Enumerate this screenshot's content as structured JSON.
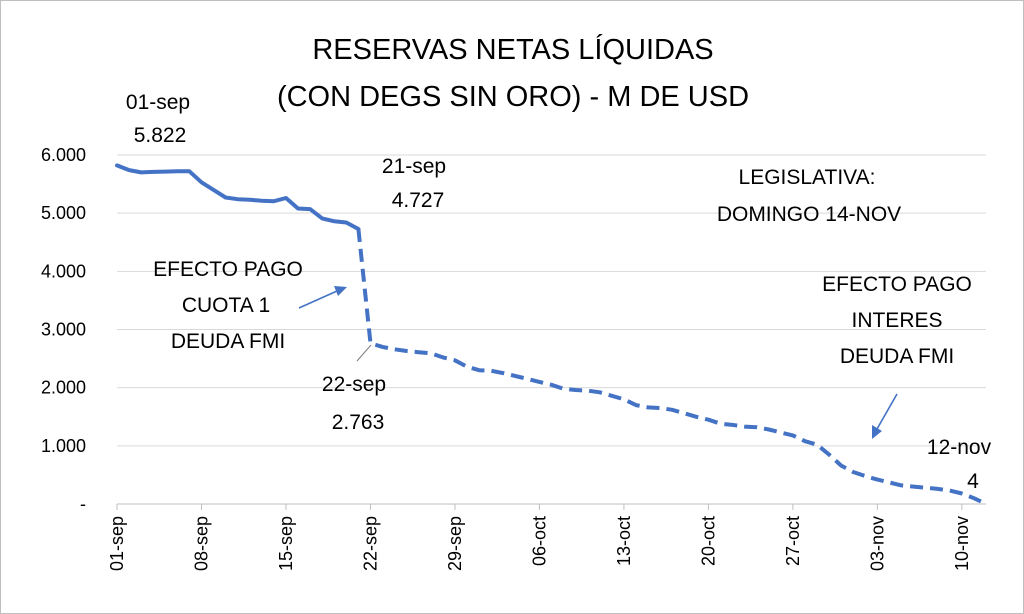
{
  "chart_data": {
    "type": "line",
    "title": [
      "RESERVAS NETAS LÍQUIDAS",
      "(CON DEGS SIN ORO) - M DE USD"
    ],
    "xlabel": "",
    "ylabel": "",
    "ylim": [
      0,
      6000
    ],
    "yticks": [
      "-",
      "1.000",
      "2.000",
      "3.000",
      "4.000",
      "5.000",
      "6.000"
    ],
    "ytick_values": [
      0,
      1000,
      2000,
      3000,
      4000,
      5000,
      6000
    ],
    "xticks": [
      "01-sep",
      "08-sep",
      "15-sep",
      "22-sep",
      "29-sep",
      "06-oct",
      "13-oct",
      "20-oct",
      "27-oct",
      "03-nov",
      "10-nov"
    ],
    "xtick_days": [
      1,
      8,
      15,
      22,
      29,
      36,
      43,
      50,
      57,
      64,
      71
    ],
    "xlim_days": [
      1,
      73
    ],
    "grid": true,
    "series": [
      {
        "style": "solid",
        "color": "#4472C4",
        "x_days": [
          1,
          2,
          3,
          4,
          5,
          6,
          7,
          8,
          9,
          10,
          11,
          12,
          13,
          14,
          15,
          16,
          17,
          18,
          19,
          20,
          21
        ],
        "values": [
          5822,
          5740,
          5700,
          5710,
          5715,
          5720,
          5720,
          5530,
          5400,
          5270,
          5240,
          5230,
          5215,
          5205,
          5260,
          5080,
          5070,
          4910,
          4860,
          4840,
          4727
        ]
      },
      {
        "style": "dashed",
        "color": "#4472C4",
        "x_days": [
          21,
          22,
          23,
          24,
          25,
          26,
          27,
          28,
          29,
          30,
          31,
          32,
          33,
          34,
          35,
          36,
          37,
          38,
          39,
          40,
          41,
          42,
          43,
          44,
          45,
          46,
          47,
          48,
          49,
          50,
          51,
          52,
          53,
          54,
          55,
          56,
          57,
          58,
          59,
          60,
          61,
          62,
          63,
          64,
          65,
          66,
          67,
          68,
          69,
          70,
          71,
          72,
          73
        ],
        "values": [
          4727,
          2763,
          2700,
          2660,
          2630,
          2610,
          2590,
          2520,
          2470,
          2360,
          2300,
          2290,
          2250,
          2200,
          2150,
          2100,
          2050,
          1980,
          1960,
          1950,
          1920,
          1860,
          1800,
          1700,
          1660,
          1650,
          1620,
          1560,
          1500,
          1450,
          1380,
          1360,
          1330,
          1320,
          1280,
          1230,
          1180,
          1080,
          1020,
          850,
          660,
          550,
          480,
          420,
          370,
          320,
          300,
          280,
          260,
          230,
          180,
          100,
          4
        ]
      }
    ],
    "annotations": [
      {
        "name": "start",
        "lines": [
          "01-sep",
          "5.822"
        ]
      },
      {
        "name": "before-drop",
        "lines": [
          "21-sep",
          "4.727"
        ]
      },
      {
        "name": "after-drop",
        "lines": [
          "22-sep",
          "2.763"
        ]
      },
      {
        "name": "end",
        "lines": [
          "12-nov",
          "4"
        ]
      },
      {
        "name": "legislativa",
        "lines": [
          "LEGISLATIVA:",
          "DOMINGO 14-NOV"
        ]
      },
      {
        "name": "efecto-cuota",
        "lines": [
          "EFECTO PAGO",
          "CUOTA 1",
          "DEUDA FMI"
        ]
      },
      {
        "name": "efecto-interes",
        "lines": [
          "EFECTO PAGO",
          "INTERES",
          "DEUDA FMI"
        ]
      }
    ]
  }
}
